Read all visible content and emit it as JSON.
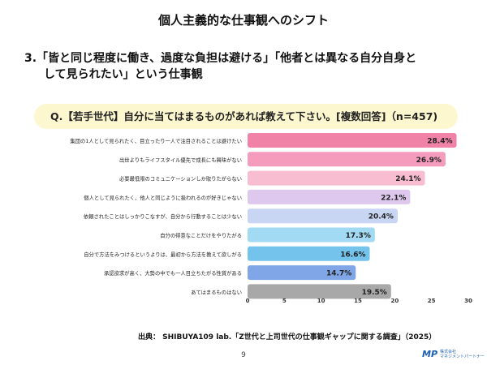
{
  "title": "個人主義的な仕事観へのシフト",
  "heading": {
    "line1": "3.「皆と同じ程度に働き、過度な負担は避ける」「他者とは異なる自分自身と",
    "line2": "して見られたい」という仕事観"
  },
  "chart_data": {
    "type": "bar",
    "orientation": "horizontal",
    "title": "Q.【若手世代】自分に当てはまるものがあれば教えて下さい。[複数回答]（n=457)",
    "categories": [
      "集団の1人として見られたく、目立ったり一人で注目されることは避けたい",
      "出世よりもライフスタイル優先で成長にも興味がない",
      "必要最低限のコミュニケーションしか取りたがらない",
      "個人として見られたく、他人と同じように扱われるのが好きじゃない",
      "依頼されたことはしっかりこなすが、自分から行動することは少ない",
      "自分の得意なことだけをやりたがる",
      "自分で方法をみつけるというよりは、最初から方法を教えて欲しがる",
      "承認欲求が高く、大勢の中でも一人目立ちたがる性質がある",
      "あてはまるものはない"
    ],
    "values": [
      28.4,
      26.9,
      24.1,
      22.1,
      20.4,
      17.3,
      16.6,
      14.7,
      19.5
    ],
    "value_labels": [
      "28.4%",
      "26.9%",
      "24.1%",
      "22.1%",
      "20.4%",
      "17.3%",
      "16.6%",
      "14.7%",
      "19.5%"
    ],
    "colors": [
      "#f081a7",
      "#f59cbc",
      "#f8bdd1",
      "#dfc8ee",
      "#c8d6f4",
      "#a3daf3",
      "#74c3ec",
      "#80a6e7",
      "#a8a8a8"
    ],
    "xlim": [
      0,
      30
    ],
    "xticks": [
      "0",
      "5",
      "10",
      "15",
      "20",
      "25",
      "30"
    ],
    "grid": false
  },
  "source": "出典： SHIBUYA109 lab.「Z世代と上司世代の仕事観ギャップに関する調査」（2025）",
  "page_number": "9",
  "logo": {
    "mark": "MP",
    "line1": "株式会社",
    "line2": "マネジメントパートナー"
  }
}
